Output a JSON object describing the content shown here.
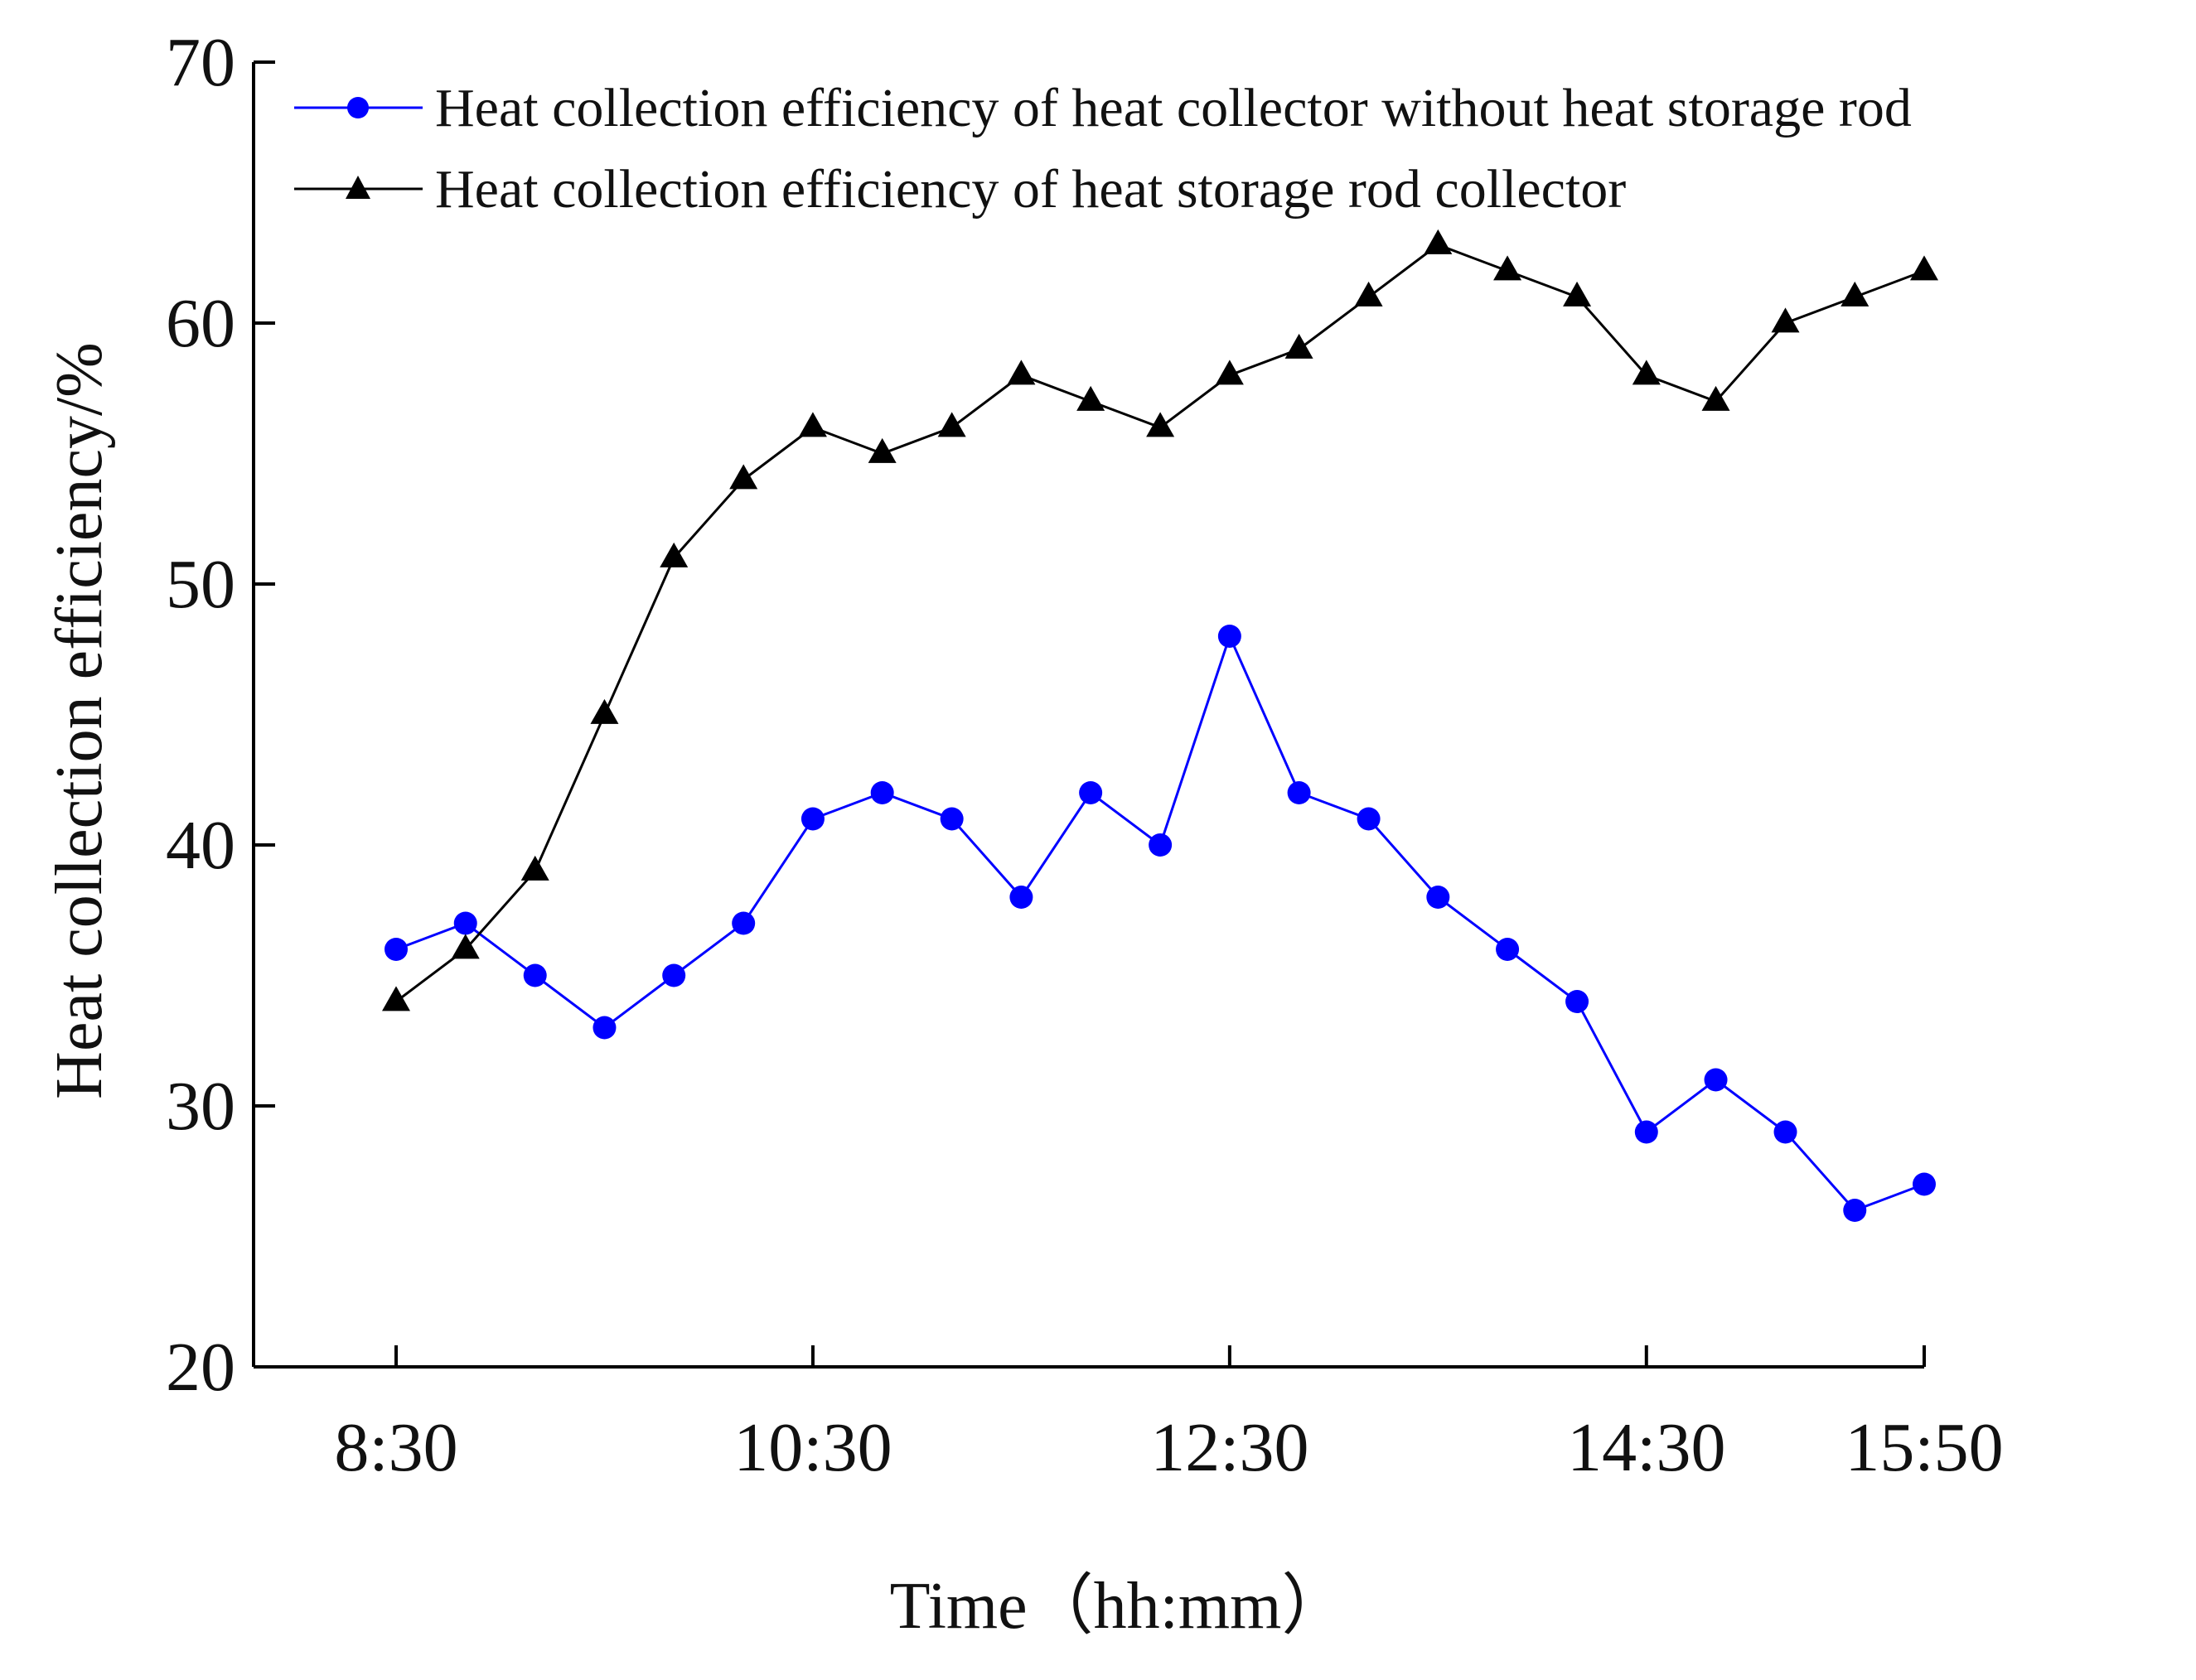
{
  "chart_data": {
    "type": "line",
    "title": "",
    "xlabel": "Time（hh:mm）",
    "ylabel": "Heat collection efficiency/%",
    "x_range": [
      8.5,
      15.833
    ],
    "ylim": [
      20,
      70
    ],
    "y_ticks": [
      20,
      30,
      40,
      50,
      60,
      70
    ],
    "x_ticks": [
      {
        "label": "8:30",
        "value": 8.5
      },
      {
        "label": "10:30",
        "value": 10.5
      },
      {
        "label": "12:30",
        "value": 12.5
      },
      {
        "label": "14:30",
        "value": 14.5
      },
      {
        "label": "15:50",
        "value": 15.833
      }
    ],
    "grid": false,
    "legend_position": "top",
    "x": [
      8.5,
      8.833,
      9.167,
      9.5,
      9.833,
      10.167,
      10.5,
      10.833,
      11.167,
      11.5,
      11.833,
      12.167,
      12.5,
      12.833,
      13.167,
      13.5,
      13.833,
      14.167,
      14.5,
      14.833,
      15.167,
      15.5,
      15.833
    ],
    "series": [
      {
        "name": "Heat collection efficiency of heat collector without heat storage rod",
        "color": "#0000ff",
        "marker": "circle",
        "values": [
          36,
          37,
          35,
          33,
          35,
          37,
          41,
          42,
          41,
          38,
          42,
          40,
          48,
          42,
          41,
          38,
          36,
          34,
          29,
          31,
          29,
          26,
          27
        ]
      },
      {
        "name": "Heat collection efficiency of heat storage rod collector",
        "color": "#000000",
        "marker": "triangle",
        "values": [
          34,
          36,
          39,
          45,
          51,
          54,
          56,
          55,
          56,
          58,
          57,
          56,
          58,
          59,
          61,
          63,
          62,
          61,
          58,
          57,
          60,
          61,
          62
        ]
      }
    ]
  }
}
